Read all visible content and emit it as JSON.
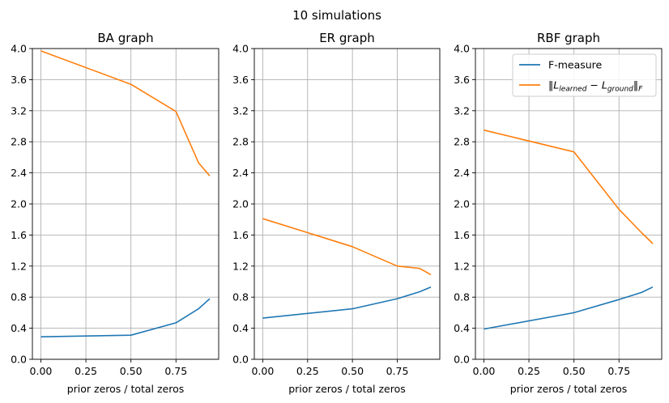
{
  "suptitle": "10 simulations",
  "chart_data": [
    {
      "type": "line",
      "title": "BA graph",
      "xlabel": "prior zeros / total zeros",
      "ylabel": "",
      "xlim": [
        -0.047,
        0.987
      ],
      "ylim": [
        0,
        4.0
      ],
      "xticks": [
        0.0,
        0.25,
        0.5,
        0.75,
        1.0
      ],
      "xtick_labels": [
        "0.00",
        "0.25",
        "0.50",
        "0.75",
        ""
      ],
      "yticks": [
        0.0,
        0.4,
        0.8,
        1.2,
        1.6,
        2.0,
        2.4,
        2.8,
        3.2,
        3.6,
        4.0
      ],
      "ytick_labels": [
        "0.0",
        "0.4",
        "0.8",
        "1.2",
        "1.6",
        "2.0",
        "2.4",
        "2.8",
        "3.2",
        "3.6",
        "4.0"
      ],
      "grid": true,
      "series": [
        {
          "color": "#1f77b4",
          "x": [
            0.0,
            0.5,
            0.75,
            0.875,
            0.9375
          ],
          "y": [
            0.29,
            0.31,
            0.47,
            0.65,
            0.78
          ]
        },
        {
          "color": "#ff7f0e",
          "x": [
            0.0,
            0.5,
            0.75,
            0.875,
            0.9375
          ],
          "y": [
            3.97,
            3.54,
            3.19,
            2.53,
            2.36
          ]
        }
      ]
    },
    {
      "type": "line",
      "title": "ER graph",
      "xlabel": "prior zeros / total zeros",
      "ylabel": "",
      "xlim": [
        -0.047,
        0.987
      ],
      "ylim": [
        0,
        4.0
      ],
      "xticks": [
        0.0,
        0.25,
        0.5,
        0.75,
        1.0
      ],
      "xtick_labels": [
        "0.00",
        "0.25",
        "0.50",
        "0.75",
        ""
      ],
      "yticks": [
        0.0,
        0.4,
        0.8,
        1.2,
        1.6,
        2.0,
        2.4,
        2.8,
        3.2,
        3.6,
        4.0
      ],
      "ytick_labels": [
        "0.0",
        "0.4",
        "0.8",
        "1.2",
        "1.6",
        "2.0",
        "2.4",
        "2.8",
        "3.2",
        "3.6",
        "4.0"
      ],
      "grid": true,
      "series": [
        {
          "color": "#1f77b4",
          "x": [
            0.0,
            0.5,
            0.75,
            0.875,
            0.9375
          ],
          "y": [
            0.53,
            0.65,
            0.78,
            0.87,
            0.93
          ]
        },
        {
          "color": "#ff7f0e",
          "x": [
            0.0,
            0.5,
            0.75,
            0.875,
            0.9375
          ],
          "y": [
            1.81,
            1.45,
            1.2,
            1.17,
            1.09
          ]
        }
      ]
    },
    {
      "type": "line",
      "title": "RBF graph",
      "xlabel": "prior zeros / total zeros",
      "ylabel": "",
      "xlim": [
        -0.047,
        0.987
      ],
      "ylim": [
        0,
        4.0
      ],
      "xticks": [
        0.0,
        0.25,
        0.5,
        0.75,
        1.0
      ],
      "xtick_labels": [
        "0.00",
        "0.25",
        "0.50",
        "0.75",
        ""
      ],
      "yticks": [
        0.0,
        0.4,
        0.8,
        1.2,
        1.6,
        2.0,
        2.4,
        2.8,
        3.2,
        3.6,
        4.0
      ],
      "ytick_labels": [
        "0.0",
        "0.4",
        "0.8",
        "1.2",
        "1.6",
        "2.0",
        "2.4",
        "2.8",
        "3.2",
        "3.6",
        "4.0"
      ],
      "grid": true,
      "legend": {
        "placement": "top-right",
        "entries": [
          {
            "label": "F-measure",
            "color": "#1f77b4"
          },
          {
            "label": "‖L_learned − L_ground‖_F",
            "color": "#ff7f0e"
          }
        ]
      },
      "series": [
        {
          "name": "F-measure",
          "color": "#1f77b4",
          "x": [
            0.0,
            0.5,
            0.75,
            0.875,
            0.9375
          ],
          "y": [
            0.39,
            0.6,
            0.77,
            0.86,
            0.93
          ]
        },
        {
          "name": "‖L_learned − L_ground‖_F",
          "color": "#ff7f0e",
          "x": [
            0.0,
            0.5,
            0.75,
            0.875,
            0.9375
          ],
          "y": [
            2.95,
            2.67,
            1.93,
            1.63,
            1.49
          ]
        }
      ]
    }
  ]
}
